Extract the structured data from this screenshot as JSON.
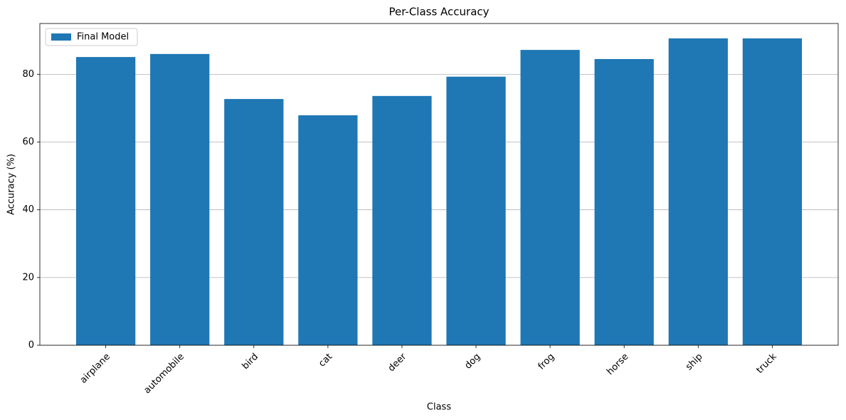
{
  "chart_data": {
    "type": "bar",
    "title": "Per-Class Accuracy",
    "x_label": "Class",
    "y_label": "Accuracy (%)",
    "categories": [
      "airplane",
      "automobile",
      "bird",
      "cat",
      "deer",
      "dog",
      "frog",
      "horse",
      "ship",
      "truck"
    ],
    "series": [
      {
        "name": "Final Model",
        "color": "#1f77b4",
        "values": [
          85.1,
          86.0,
          72.7,
          67.9,
          73.6,
          79.3,
          87.2,
          84.5,
          90.6,
          90.6
        ]
      }
    ],
    "ylim": [
      0,
      95
    ],
    "yticks": [
      0,
      20,
      40,
      60,
      80
    ],
    "grid": true,
    "legend": "upper-left"
  }
}
